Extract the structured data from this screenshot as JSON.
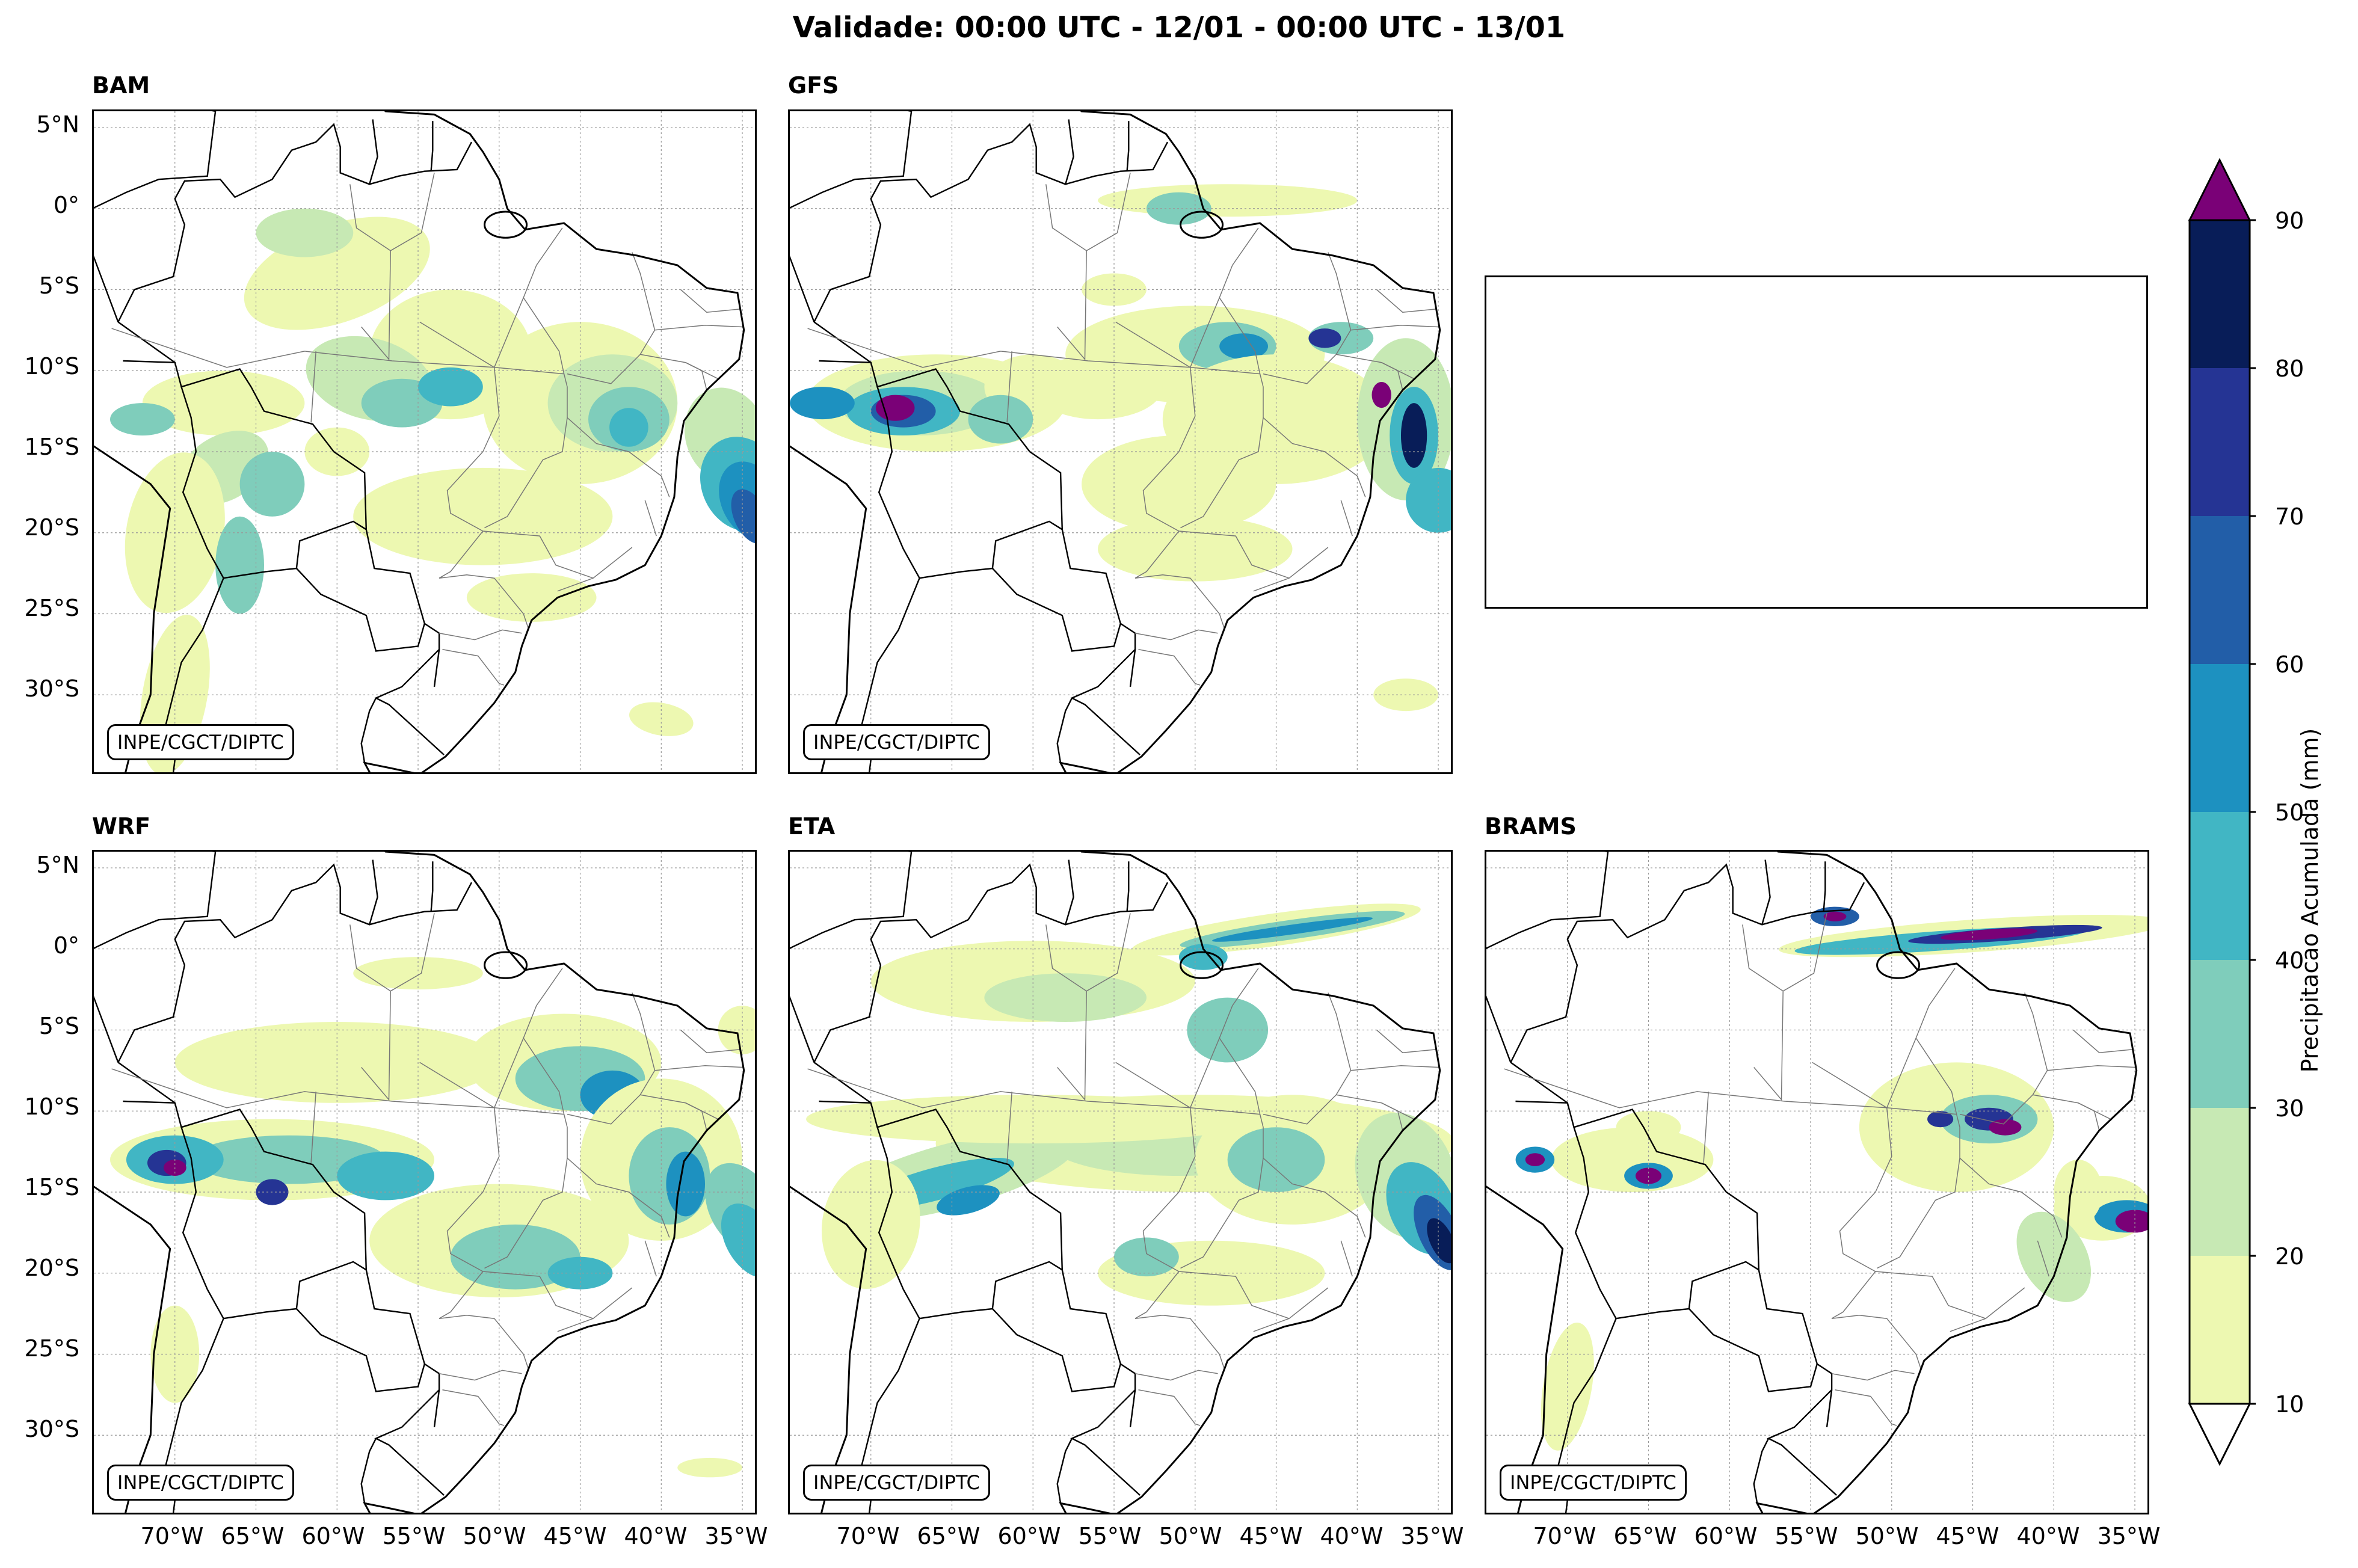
{
  "title": "Validade: 00:00 UTC - 12/01 - 00:00 UTC - 13/01",
  "credit": "INPE/CGCT/DIPTC",
  "panels": [
    {
      "name": "BAM"
    },
    {
      "name": "GFS"
    },
    {
      "name": "WRF"
    },
    {
      "name": "ETA"
    },
    {
      "name": "BRAMS"
    }
  ],
  "lat_labels": [
    "5°N",
    "0°",
    "5°S",
    "10°S",
    "15°S",
    "20°S",
    "25°S",
    "30°S"
  ],
  "lon_labels": [
    "70°W",
    "65°W",
    "60°W",
    "55°W",
    "50°W",
    "45°W",
    "40°W",
    "35°W"
  ],
  "colorbar": {
    "label": "Precipitacao Acumulada (mm)",
    "ticks": [
      "10",
      "20",
      "30",
      "40",
      "50",
      "60",
      "70",
      "80",
      "90"
    ],
    "colors": [
      "#edf8b1",
      "#c7e9b4",
      "#7fcdbb",
      "#41b6c4",
      "#1d91c0",
      "#225ea8",
      "#253494",
      "#081d58"
    ],
    "extend_max_color": "#7a0177",
    "extend_min_color": "#ffffff"
  },
  "chart_data": {
    "type": "map",
    "title": "Validade: 00:00 UTC - 12/01 - 00:00 UTC - 13/01",
    "variable": "Precipitacao Acumulada (mm)",
    "levels": [
      10,
      20,
      30,
      40,
      50,
      60,
      70,
      80,
      90
    ],
    "lon_range": [
      -75,
      -34
    ],
    "lat_range": [
      -35,
      6
    ],
    "models": [
      "BAM",
      "GFS",
      "WRF",
      "ETA",
      "BRAMS"
    ]
  }
}
